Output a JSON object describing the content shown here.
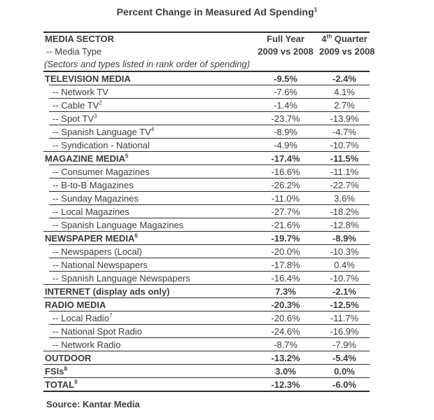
{
  "chart_data": {
    "type": "table",
    "title": "Percent Change in Measured Ad Spending",
    "title_footnote": "1",
    "header": {
      "sector_title": "MEDIA SECTOR",
      "sector_subtitle": "-- Media Type",
      "sector_note": "(Sectors and types listed in rank order of spending)",
      "full_year_label": "Full Year",
      "full_year_period": "2009 vs 2008",
      "q4_label_num": "4",
      "q4_label_sup": "th",
      "q4_label_rest": " Quarter",
      "q4_period": "2009 vs 2008"
    },
    "columns": [
      "MEDIA SECTOR / -- Media Type",
      "Full Year 2009 vs 2008",
      "4th Quarter 2009 vs 2008"
    ],
    "rows": [
      {
        "label": "TELEVISION MEDIA",
        "footnote": "",
        "full_year": "-9.5%",
        "q4": "-2.4%",
        "bold": true
      },
      {
        "label": "-- Network TV",
        "footnote": "",
        "full_year": "-7.6%",
        "q4": "4.1%",
        "bold": false
      },
      {
        "label": "-- Cable TV",
        "footnote": "2",
        "full_year": "-1.4%",
        "q4": "2.7%",
        "bold": false
      },
      {
        "label": "-- Spot TV",
        "footnote": "3",
        "full_year": "-23.7%",
        "q4": "-13.9%",
        "bold": false
      },
      {
        "label": "-- Spanish Language TV",
        "footnote": "4",
        "full_year": "-8.9%",
        "q4": "-4.7%",
        "bold": false
      },
      {
        "label": "-- Syndication - National",
        "footnote": "",
        "full_year": "-4.9%",
        "q4": "-10.7%",
        "bold": false
      },
      {
        "label": "MAGAZINE MEDIA",
        "footnote": "5",
        "full_year": "-17.4%",
        "q4": "-11.5%",
        "bold": true
      },
      {
        "label": "-- Consumer Magazines",
        "footnote": "",
        "full_year": "-16.6%",
        "q4": "-11.1%",
        "bold": false
      },
      {
        "label": "-- B-to-B Magazines",
        "footnote": "",
        "full_year": "-26.2%",
        "q4": "-22.7%",
        "bold": false
      },
      {
        "label": "-- Sunday Magazines",
        "footnote": "",
        "full_year": "-11.0%",
        "q4": "3.6%",
        "bold": false
      },
      {
        "label": "-- Local Magazines",
        "footnote": "",
        "full_year": "-27.7%",
        "q4": "-18.2%",
        "bold": false
      },
      {
        "label": "-- Spanish Language Magazines",
        "footnote": "",
        "full_year": "-21.6%",
        "q4": "-12.8%",
        "bold": false
      },
      {
        "label": "NEWSPAPER MEDIA",
        "footnote": "6",
        "full_year": "-19.7%",
        "q4": "-8.9%",
        "bold": true
      },
      {
        "label": "-- Newspapers (Local)",
        "footnote": "",
        "full_year": "-20.0%",
        "q4": "-10.3%",
        "bold": false
      },
      {
        "label": "-- National Newspapers",
        "footnote": "",
        "full_year": "-17.8%",
        "q4": "0.4%",
        "bold": false
      },
      {
        "label": "-- Spanish Language Newspapers",
        "footnote": "",
        "full_year": "-16.4%",
        "q4": "-10.7%",
        "bold": false
      },
      {
        "label": "INTERNET (display ads only)",
        "footnote": "",
        "full_year": "7.3%",
        "q4": "-2.1%",
        "bold": true
      },
      {
        "label": "RADIO MEDIA",
        "footnote": "",
        "full_year": "-20.3%",
        "q4": "-12.5%",
        "bold": true
      },
      {
        "label": "-- Local Radio",
        "footnote": "7",
        "full_year": "-20.6%",
        "q4": "-11.7%",
        "bold": false
      },
      {
        "label": "-- National Spot Radio",
        "footnote": "",
        "full_year": "-24.6%",
        "q4": "-16.9%",
        "bold": false
      },
      {
        "label": "-- Network Radio",
        "footnote": "",
        "full_year": "-8.7%",
        "q4": "-7.9%",
        "bold": false
      },
      {
        "label": "OUTDOOR",
        "footnote": "",
        "full_year": "-13.2%",
        "q4": "-5.4%",
        "bold": true
      },
      {
        "label": "FSIs",
        "footnote": "8",
        "full_year": "3.0%",
        "q4": "0.0%",
        "bold": true
      },
      {
        "label": "TOTAL",
        "footnote": "9",
        "full_year": "-12.3%",
        "q4": "-6.0%",
        "bold": true
      }
    ],
    "source": "Source: Kantar Media"
  },
  "colors": {
    "text": "#3d3d3d",
    "line": "#2d2d2d",
    "background": "#ffffff"
  }
}
